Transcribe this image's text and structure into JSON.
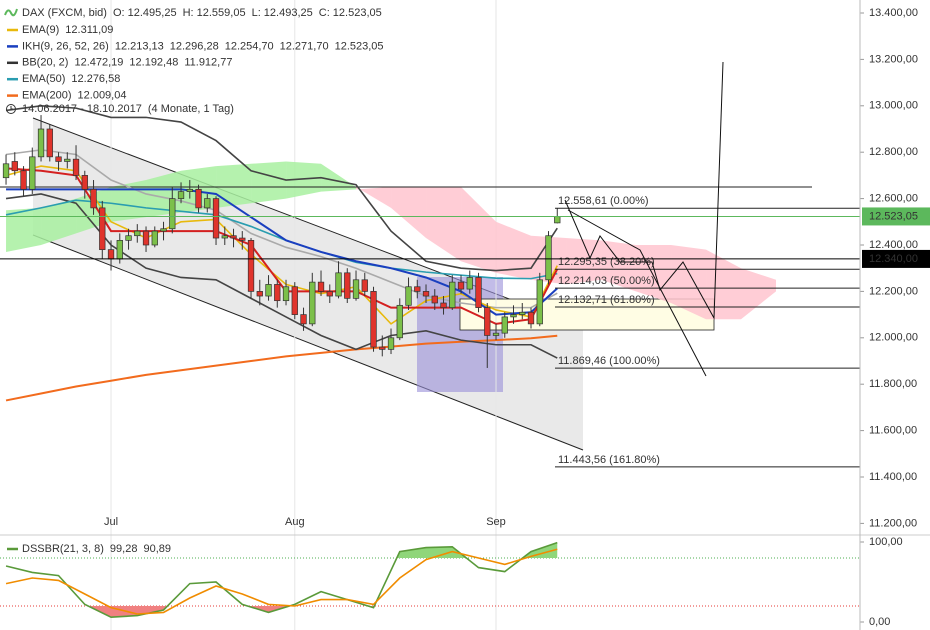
{
  "chart_data": [
    {
      "type": "candlestick",
      "header": {
        "name": "DAX (FXCM, bid)",
        "values": [
          "O: 12.495,25",
          "H: 12.559,05",
          "L: 12.493,25",
          "C: 12.523,05"
        ]
      },
      "legend": [
        {
          "name": "EMA(9)",
          "color": "#e8b90c",
          "values": [
            "12.311,09"
          ],
          "value_colors": [
            "#c9a000"
          ]
        },
        {
          "name": "IKH(9, 26, 52, 26)",
          "color": "#1a3fbf",
          "values": [
            "12.213,13",
            "12.296,28",
            "12.254,70",
            "12.271,70",
            "12.523,05"
          ],
          "value_colors": [
            "#1a3fbf",
            "#d42020",
            "#d42020",
            "#d88000",
            "#d42020"
          ]
        },
        {
          "name": "BB(20, 2)",
          "color": "#333333",
          "values": [
            "12.472,19",
            "12.192,48",
            "11.912,77"
          ],
          "value_colors": [
            "#333333",
            "#999999",
            "#333333"
          ]
        },
        {
          "name": "EMA(50)",
          "color": "#2a9db0",
          "values": [
            "12.276,58"
          ],
          "value_colors": [
            "#2a8aa0"
          ]
        },
        {
          "name": "EMA(200)",
          "color": "#f26b1d",
          "values": [
            "12.009,04"
          ],
          "value_colors": [
            "#e06010"
          ]
        }
      ],
      "date_range": "14.06.2017 - 18.10.2017",
      "period": "(4 Monate, 1 Tag)",
      "up_color": "#7cc04a",
      "down_color": "#e0342c",
      "open": [
        12690,
        12760,
        12720,
        12640,
        12780,
        12900,
        12780,
        12760,
        12770,
        12700,
        12640,
        12560,
        12380,
        12340,
        12420,
        12440,
        12460,
        12400,
        12460,
        12470,
        12600,
        12630,
        12640,
        12560,
        12600,
        12430,
        12440,
        12430,
        12420,
        12200,
        12180,
        12230,
        12160,
        12220,
        12100,
        12060,
        12240,
        12200,
        12180,
        12280,
        12170,
        12250,
        12200,
        11960,
        11950,
        12000,
        12140,
        12220,
        12200,
        12180,
        12150,
        12130,
        12240,
        12210,
        12260,
        12130,
        12010,
        12020,
        12090,
        12100,
        12110,
        12060,
        12250,
        12495.25
      ],
      "high": [
        12790,
        12800,
        12740,
        12820,
        12960,
        12920,
        12800,
        12800,
        12830,
        12720,
        12680,
        12590,
        12420,
        12450,
        12470,
        12490,
        12480,
        12480,
        12500,
        12650,
        12670,
        12680,
        12660,
        12620,
        12610,
        12480,
        12470,
        12460,
        12430,
        12250,
        12270,
        12250,
        12250,
        12240,
        12130,
        12280,
        12290,
        12230,
        12330,
        12300,
        12290,
        12280,
        12220,
        12010,
        12040,
        12170,
        12260,
        12250,
        12230,
        12210,
        12180,
        12270,
        12270,
        12290,
        12280,
        12150,
        12060,
        12110,
        12140,
        12150,
        12130,
        12280,
        12460,
        12559.05
      ],
      "low": [
        12660,
        12700,
        12610,
        12620,
        12760,
        12760,
        12720,
        12730,
        12680,
        12600,
        12530,
        12340,
        12290,
        12320,
        12380,
        12410,
        12370,
        12390,
        12420,
        12450,
        12580,
        12600,
        12540,
        12540,
        12400,
        12400,
        12390,
        12380,
        12170,
        12140,
        12160,
        12130,
        12140,
        12080,
        12030,
        12050,
        12180,
        12150,
        12170,
        12150,
        12160,
        12180,
        11940,
        11920,
        11930,
        11990,
        12120,
        12170,
        12150,
        12120,
        12100,
        12120,
        12190,
        12190,
        12110,
        11870,
        11990,
        12000,
        12060,
        12080,
        12040,
        12050,
        12230,
        12493.25
      ],
      "close": [
        12750,
        12720,
        12640,
        12780,
        12900,
        12780,
        12760,
        12770,
        12700,
        12640,
        12560,
        12380,
        12340,
        12420,
        12440,
        12460,
        12400,
        12460,
        12470,
        12600,
        12630,
        12640,
        12560,
        12600,
        12430,
        12440,
        12430,
        12420,
        12200,
        12180,
        12230,
        12160,
        12220,
        12100,
        12060,
        12240,
        12200,
        12180,
        12280,
        12170,
        12250,
        12200,
        11960,
        11950,
        12000,
        12140,
        12220,
        12200,
        12180,
        12150,
        12130,
        12240,
        12210,
        12260,
        12130,
        12010,
        12020,
        12090,
        12100,
        12110,
        12060,
        12250,
        12440,
        12523.05
      ],
      "cloud": {
        "x": [
          0,
          4,
          8,
          12,
          16,
          20,
          24,
          28,
          32,
          36,
          40,
          44,
          48,
          52,
          56,
          60,
          64,
          68,
          72,
          76,
          80,
          84,
          88
        ],
        "span_a": [
          12550,
          12560,
          12600,
          12650,
          12680,
          12720,
          12740,
          12750,
          12760,
          12750,
          12650,
          12560,
          12430,
          12330,
          12280,
          12250,
          12230,
          12250,
          12200,
          12150,
          12080,
          12080,
          12200
        ],
        "span_b": [
          12370,
          12400,
          12450,
          12500,
          12520,
          12540,
          12560,
          12580,
          12600,
          12630,
          12640,
          12650,
          12650,
          12650,
          12500,
          12440,
          12430,
          12420,
          12400,
          12400,
          12380,
          12300,
          12250
        ],
        "up_color": "#a8f0a0",
        "down_color": "#ffc4cf"
      },
      "series": [
        {
          "color": "#f26b1d",
          "width": 2,
          "x": [
            0,
            4,
            8,
            12,
            16,
            20,
            24,
            28,
            32,
            36,
            40,
            44,
            48,
            52,
            56,
            60,
            63
          ],
          "values": [
            11730,
            11760,
            11790,
            11815,
            11840,
            11860,
            11880,
            11900,
            11920,
            11935,
            11950,
            11962,
            11975,
            11983,
            11990,
            11998,
            12009.04
          ]
        },
        {
          "color": "#444444",
          "width": 1.6,
          "x": [
            0,
            4,
            8,
            12,
            16,
            20,
            24,
            28,
            32,
            36,
            40,
            44,
            48,
            52,
            56,
            60,
            63
          ],
          "values": [
            12980,
            13000,
            12990,
            12950,
            12950,
            12930,
            12850,
            12720,
            12680,
            12690,
            12660,
            12460,
            12330,
            12300,
            12290,
            12300,
            12472.19
          ]
        },
        {
          "color": "#444444",
          "width": 1.6,
          "x": [
            0,
            4,
            8,
            12,
            16,
            20,
            24,
            28,
            32,
            36,
            40,
            44,
            48,
            52,
            56,
            60,
            63
          ],
          "values": [
            12600,
            12620,
            12580,
            12400,
            12300,
            12260,
            12250,
            12170,
            12090,
            12010,
            11950,
            12010,
            12030,
            11990,
            11970,
            11970,
            11912.77
          ]
        },
        {
          "color": "#aaaaaa",
          "width": 1.6,
          "x": [
            0,
            4,
            8,
            12,
            16,
            20,
            24,
            28,
            32,
            36,
            40,
            44,
            48,
            52,
            56,
            60,
            63
          ],
          "values": [
            12790,
            12810,
            12790,
            12680,
            12620,
            12590,
            12550,
            12450,
            12390,
            12350,
            12300,
            12240,
            12180,
            12150,
            12130,
            12130,
            12192.48
          ]
        },
        {
          "color": "#2a9db0",
          "width": 1.6,
          "x": [
            0,
            4,
            8,
            12,
            16,
            20,
            24,
            28,
            32,
            36,
            40,
            44,
            48,
            52,
            56,
            60,
            63
          ],
          "values": [
            12530,
            12560,
            12593,
            12580,
            12560,
            12545,
            12530,
            12480,
            12420,
            12370,
            12325,
            12300,
            12283,
            12270,
            12257,
            12255,
            12276.58
          ]
        },
        {
          "color": "#e8b90c",
          "width": 1.6,
          "x": [
            0,
            4,
            8,
            12,
            16,
            20,
            24,
            28,
            32,
            36,
            40,
            44,
            48,
            52,
            56,
            60,
            63
          ],
          "values": [
            12700,
            12740,
            12720,
            12500,
            12430,
            12500,
            12510,
            12360,
            12230,
            12190,
            12220,
            12060,
            12160,
            12190,
            12120,
            12090,
            12311.09
          ]
        },
        {
          "color": "#1a3fbf",
          "width": 2,
          "x": [
            0,
            4,
            8,
            12,
            16,
            20,
            24,
            28,
            32,
            36,
            40,
            44,
            48,
            52,
            56,
            60,
            63
          ],
          "values": [
            12640,
            12640,
            12640,
            12640,
            12640,
            12640,
            12620,
            12520,
            12420,
            12370,
            12330,
            12300,
            12260,
            12200,
            12100,
            12110,
            12213.13
          ]
        },
        {
          "color": "#d42020",
          "width": 2,
          "x": [
            0,
            4,
            8,
            12,
            16,
            20,
            24,
            28,
            32,
            36,
            40,
            44,
            48,
            52,
            56,
            60,
            63
          ],
          "values": [
            12730,
            12720,
            12700,
            12460,
            12460,
            12460,
            12460,
            12400,
            12200,
            12200,
            12200,
            12130,
            12130,
            12130,
            12060,
            12080,
            12296.28
          ]
        }
      ],
      "fibonacci": [
        {
          "value": 12558.61,
          "label": "12.558,61 (0.00%)"
        },
        {
          "value": 12295.35,
          "label": "12.295,35 (38.20%)"
        },
        {
          "value": 12214.03,
          "label": "12.214,03 (50.00%)"
        },
        {
          "value": 12132.71,
          "label": "12.132,71 (61.80%)"
        },
        {
          "value": 11869.46,
          "label": "11.869,46 (100.00%)"
        },
        {
          "value": 11443.56,
          "label": "11.443,56 (161.80%)"
        }
      ],
      "hlines": [
        12650
      ],
      "price_tags": [
        {
          "value": 12523.05,
          "label": "12.523,05",
          "color": "#5cb85c"
        },
        {
          "value": 12340,
          "label": "12.340,00",
          "color": "#000000"
        }
      ],
      "xlim": [
        -0.69,
        97.6
      ],
      "xticks": [
        {
          "value": 12,
          "label": "Jul"
        },
        {
          "value": 33,
          "label": "Aug"
        },
        {
          "value": 56,
          "label": "Sep"
        }
      ],
      "ylim": [
        11150,
        13456
      ],
      "yticks": [
        {
          "value": 11200,
          "label": "11.200,00"
        },
        {
          "value": 11400,
          "label": "11.400,00"
        },
        {
          "value": 11600,
          "label": "11.600,00"
        },
        {
          "value": 11800,
          "label": "11.800,00"
        },
        {
          "value": 12000,
          "label": "12.000,00"
        },
        {
          "value": 12200,
          "label": "12.200,00"
        },
        {
          "value": 12400,
          "label": "12.400,00"
        },
        {
          "value": 12600,
          "label": "12.600,00"
        },
        {
          "value": 12800,
          "label": "12.800,00"
        },
        {
          "value": 13000,
          "label": "13.000,00"
        },
        {
          "value": 13200,
          "label": "13.200,00"
        },
        {
          "value": 13400,
          "label": "13.400,00"
        }
      ]
    },
    {
      "type": "line",
      "legend": {
        "name": "DSSBR(21, 3, 8)",
        "color": "#5a9a3a",
        "values": [
          "99,28",
          "90,89"
        ],
        "value_colors": [
          "#4a7a30",
          "#e08000"
        ]
      },
      "x": [
        0,
        3,
        6,
        9,
        12,
        15,
        18,
        21,
        24,
        27,
        30,
        33,
        36,
        39,
        42,
        45,
        48,
        51,
        54,
        57,
        60,
        63
      ],
      "series": [
        {
          "color": "#5a9a3a",
          "values": [
            70,
            62,
            58,
            22,
            6,
            8,
            15,
            48,
            50,
            22,
            12,
            22,
            38,
            28,
            18,
            88,
            93,
            94,
            68,
            63,
            88,
            99.28
          ]
        },
        {
          "color": "#f08c00",
          "values": [
            48,
            55,
            52,
            35,
            18,
            10,
            12,
            30,
            45,
            35,
            22,
            20,
            28,
            28,
            22,
            55,
            78,
            88,
            80,
            72,
            82,
            90.89
          ]
        }
      ],
      "levels": [
        80,
        20
      ],
      "level_colors": [
        "#4caf50",
        "#e53935"
      ],
      "fill_colors": [
        "#8fd67a",
        "#f08080"
      ],
      "ylim": [
        -10,
        108.75
      ],
      "yticks": [
        {
          "value": 100,
          "label": "100,00"
        },
        {
          "value": 0,
          "label": "0,00"
        }
      ]
    }
  ]
}
